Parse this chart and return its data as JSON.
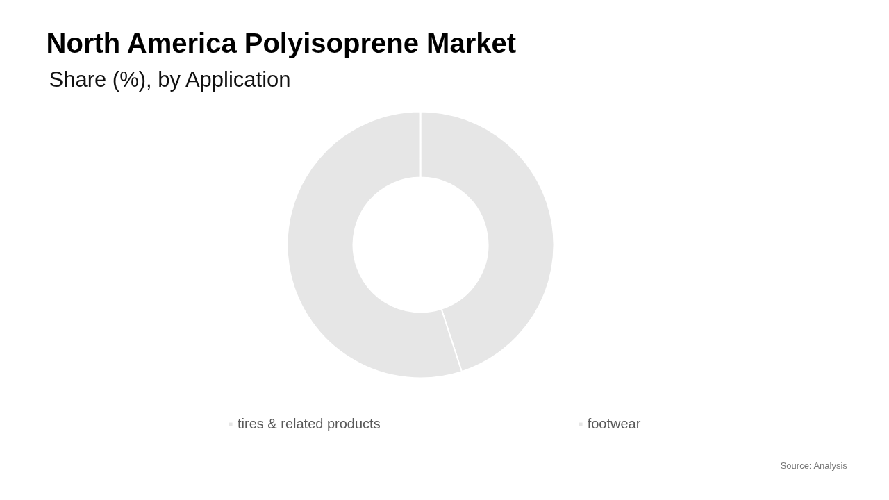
{
  "chart_data": {
    "type": "donut",
    "title": "North America Polyisoprene Market",
    "subtitle": "Share (%), by Application",
    "categories": [
      "tires & related products",
      "footwear"
    ],
    "values": [
      45,
      55
    ],
    "colors": [
      "#e6e6e6",
      "#e6e6e6"
    ],
    "legend": "bottom",
    "annotations": [
      "Source: Analysis"
    ]
  }
}
